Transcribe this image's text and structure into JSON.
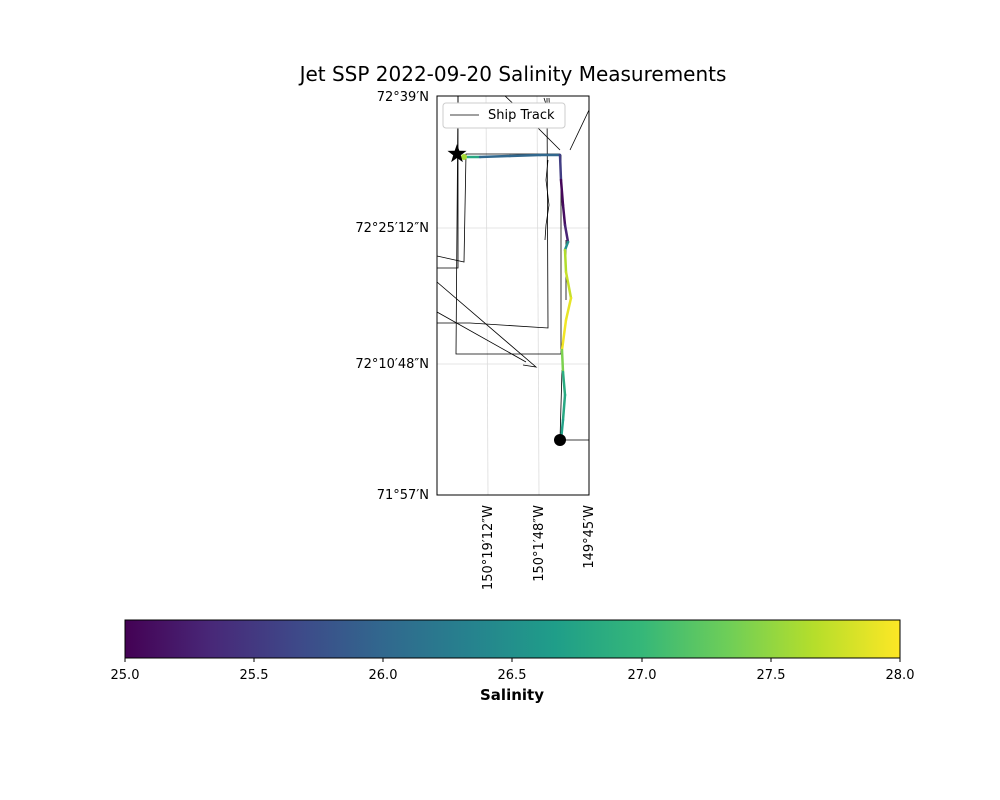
{
  "title": "Jet SSP 2022-09-20 Salinity Measurements",
  "map": {
    "lat_ticks": [
      "72°39′N",
      "72°25′12″N",
      "72°10′48″N",
      "71°57′N"
    ],
    "lon_ticks": [
      "150°19′12″W",
      "150°1′48″W",
      "149°45′W"
    ],
    "legend": {
      "entry": "Ship Track"
    },
    "markers": {
      "start": "star",
      "end": "circle"
    }
  },
  "colorbar": {
    "label": "Salinity",
    "min": 25.0,
    "max": 28.0,
    "colormap": "viridis",
    "ticks": [
      "25.0",
      "25.5",
      "26.0",
      "26.5",
      "27.0",
      "27.5",
      "28.0"
    ]
  },
  "colors": {
    "ship_track": "#000000",
    "viridis": [
      "#440154",
      "#482878",
      "#3e4989",
      "#31688e",
      "#26828e",
      "#1f9e89",
      "#35b779",
      "#6ece58",
      "#b5de2b",
      "#fde725"
    ]
  },
  "salinity_track": [
    {
      "salinity": 27.6
    },
    {
      "salinity": 26.0
    },
    {
      "salinity": 26.0
    },
    {
      "salinity": 26.0
    },
    {
      "salinity": 26.0
    },
    {
      "salinity": 25.1
    },
    {
      "salinity": 25.0
    },
    {
      "salinity": 25.2
    },
    {
      "salinity": 25.4
    },
    {
      "salinity": 27.6
    },
    {
      "salinity": 27.7
    },
    {
      "salinity": 27.8
    },
    {
      "salinity": 28.0
    },
    {
      "salinity": 27.9
    },
    {
      "salinity": 26.9
    },
    {
      "salinity": 26.8
    },
    {
      "salinity": 26.8
    },
    {
      "salinity": 26.6
    }
  ]
}
